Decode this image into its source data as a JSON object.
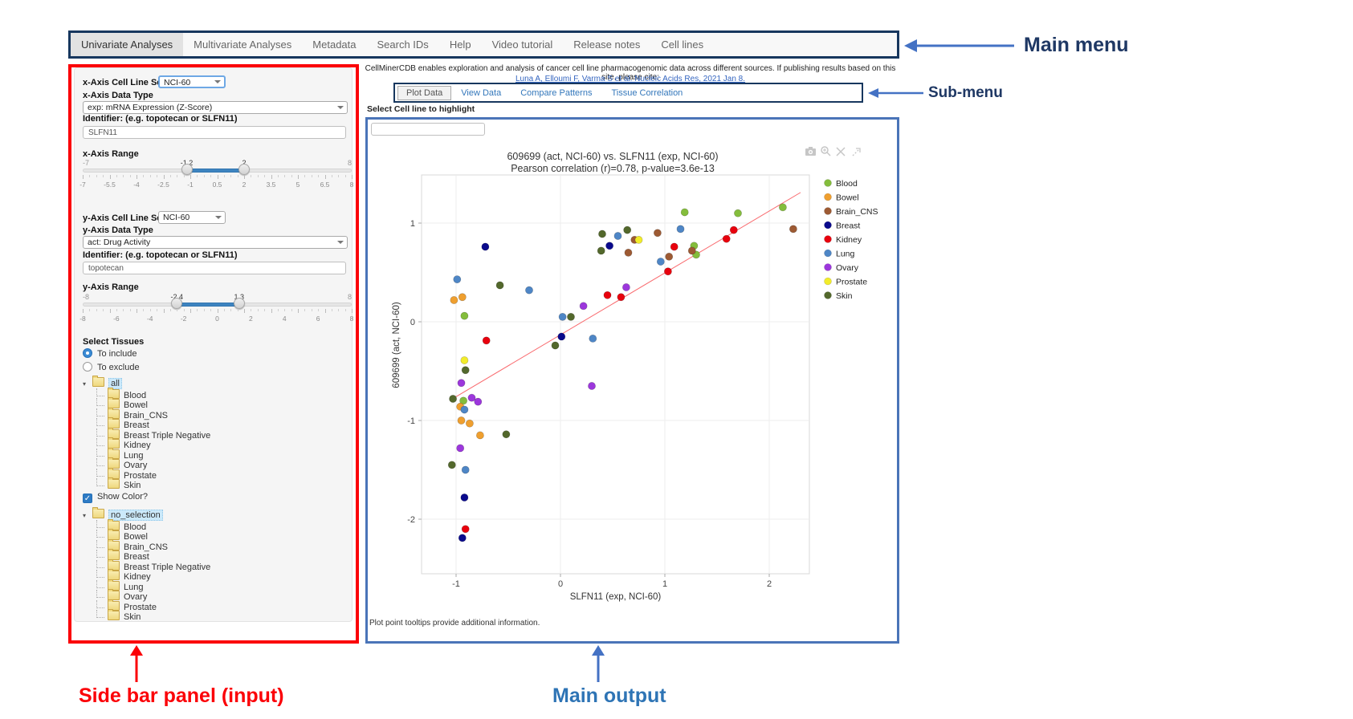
{
  "annotations": {
    "main_menu": "Main menu",
    "submenu": "Sub-menu",
    "sidebar": "Side bar panel (input)",
    "main_output": "Main output"
  },
  "main_menu": {
    "items": [
      "Univariate Analyses",
      "Multivariate Analyses",
      "Metadata",
      "Search IDs",
      "Help",
      "Video tutorial",
      "Release notes",
      "Cell lines"
    ],
    "active": "Univariate Analyses"
  },
  "citation": {
    "text": "CellMinerCDB enables exploration and analysis of cancer cell line pharmacogenomic data across different sources. If publishing results based on this site, please cite:",
    "link": "Luna A, Elloumi F, Varma S et al. Nucleic Acids Res, 2021 Jan 8."
  },
  "submenu": {
    "tabs": [
      "Plot Data",
      "View Data",
      "Compare Patterns",
      "Tissue Correlation"
    ],
    "active": "Plot Data"
  },
  "sidebar": {
    "x_axis": {
      "cell_line_set_label": "x-Axis Cell Line Set",
      "cell_line_set_value": "NCI-60",
      "data_type_label": "x-Axis Data Type",
      "data_type_value": "exp: mRNA Expression (Z-Score)",
      "identifier_label": "Identifier: (e.g. topotecan or SLFN11)",
      "identifier_value": "SLFN11",
      "range_label": "x-Axis Range",
      "range": {
        "min": -7,
        "max": 8,
        "from": -1.2,
        "to": 2,
        "min_label": "-7",
        "max_label": "8",
        "from_label": "-1.2",
        "to_label": "2",
        "ticks": [
          "-7",
          "-5.5",
          "-4",
          "-2.5",
          "-1",
          "0.5",
          "2",
          "3.5",
          "5",
          "6.5",
          "8"
        ]
      }
    },
    "y_axis": {
      "cell_line_set_label": "y-Axis Cell Line Set",
      "cell_line_set_value": "NCI-60",
      "data_type_label": "y-Axis Data Type",
      "data_type_value": "act: Drug Activity",
      "identifier_label": "Identifier: (e.g. topotecan or SLFN11)",
      "identifier_value": "topotecan",
      "range_label": "y-Axis Range",
      "range": {
        "min": -8,
        "max": 8,
        "from": -2.4,
        "to": 1.3,
        "min_label": "-8",
        "max_label": "8",
        "from_label": "-2.4",
        "to_label": "1.3",
        "ticks": [
          "-8",
          "-6",
          "-4",
          "-2",
          "0",
          "2",
          "4",
          "6",
          "8"
        ]
      }
    },
    "select_tissues": {
      "label": "Select Tissues",
      "options": [
        "To include",
        "To exclude"
      ],
      "selected": "To include"
    },
    "include_tree": {
      "root": "all",
      "selected_root": true,
      "children": [
        "Blood",
        "Bowel",
        "Brain_CNS",
        "Breast",
        "Breast Triple Negative",
        "Kidney",
        "Lung",
        "Ovary",
        "Prostate",
        "Skin"
      ]
    },
    "show_color_label": "Show Color?",
    "show_color_checked": true,
    "color_tree": {
      "root": "no_selection",
      "selected_root": true,
      "children": [
        "Blood",
        "Bowel",
        "Brain_CNS",
        "Breast",
        "Breast Triple Negative",
        "Kidney",
        "Lung",
        "Ovary",
        "Prostate",
        "Skin"
      ]
    }
  },
  "main": {
    "highlight_label": "Select Cell line to highlight",
    "highlight_value": "",
    "footer_note": "Plot point tooltips provide additional information.",
    "modebar_icons": [
      "camera-icon",
      "zoom-in-icon",
      "close-icon",
      "drag-icon"
    ]
  },
  "chart_data": {
    "type": "scatter",
    "title_line1": "609699 (act, NCI-60) vs. SLFN11 (exp, NCI-60)",
    "title_line2": "Pearson correlation (r)=0.78, p-value=3.6e-13",
    "xlabel": "SLFN11 (exp, NCI-60)",
    "ylabel": "609699 (act, NCI-60)",
    "xlim": [
      -1.35,
      2.4
    ],
    "ylim": [
      -2.55,
      1.5
    ],
    "x_ticks": [
      -1,
      0,
      1,
      2
    ],
    "y_ticks": [
      -2,
      -1,
      0,
      1
    ],
    "grid": true,
    "legend_position": "right",
    "regression_line": {
      "color": "#F96A6E",
      "x1": -1.05,
      "y1": -0.79,
      "x2": 2.3,
      "y2": 1.31
    },
    "series": [
      {
        "name": "Blood",
        "color": "#84BD3C",
        "points": [
          [
            -0.92,
            0.06
          ],
          [
            -0.93,
            -0.8
          ],
          [
            1.19,
            1.11
          ],
          [
            1.28,
            0.77
          ],
          [
            1.3,
            0.68
          ],
          [
            1.7,
            1.1
          ],
          [
            2.13,
            1.16
          ]
        ]
      },
      {
        "name": "Bowel",
        "color": "#EF9F2F",
        "points": [
          [
            -1.02,
            0.22
          ],
          [
            -0.94,
            0.25
          ],
          [
            -0.96,
            -0.86
          ],
          [
            -0.95,
            -1.0
          ],
          [
            -0.87,
            -1.03
          ],
          [
            -0.77,
            -1.15
          ]
        ]
      },
      {
        "name": "Brain_CNS",
        "color": "#9D5A33",
        "points": [
          [
            0.71,
            0.83
          ],
          [
            0.65,
            0.7
          ],
          [
            0.93,
            0.9
          ],
          [
            1.04,
            0.66
          ],
          [
            1.26,
            0.72
          ],
          [
            2.23,
            0.94
          ]
        ]
      },
      {
        "name": "Breast",
        "color": "#0A0A8C",
        "points": [
          [
            -0.72,
            0.76
          ],
          [
            0.47,
            0.77
          ],
          [
            0.01,
            -0.15
          ],
          [
            -0.92,
            -1.78
          ],
          [
            -0.94,
            -2.19
          ]
        ]
      },
      {
        "name": "Kidney",
        "color": "#E8000D",
        "points": [
          [
            -0.71,
            -0.19
          ],
          [
            0.45,
            0.27
          ],
          [
            0.58,
            0.25
          ],
          [
            1.03,
            0.51
          ],
          [
            1.09,
            0.76
          ],
          [
            1.59,
            0.84
          ],
          [
            1.66,
            0.93
          ],
          [
            -0.91,
            -2.1
          ]
        ]
      },
      {
        "name": "Lung",
        "color": "#4E86C6",
        "points": [
          [
            -0.99,
            0.43
          ],
          [
            -0.3,
            0.32
          ],
          [
            0.02,
            0.05
          ],
          [
            0.55,
            0.87
          ],
          [
            0.96,
            0.61
          ],
          [
            1.15,
            0.94
          ],
          [
            0.31,
            -0.17
          ],
          [
            -0.92,
            -0.89
          ],
          [
            -0.91,
            -1.5
          ]
        ]
      },
      {
        "name": "Ovary",
        "color": "#9C37DC",
        "points": [
          [
            0.63,
            0.35
          ],
          [
            0.22,
            0.16
          ],
          [
            -0.95,
            -0.62
          ],
          [
            0.3,
            -0.65
          ],
          [
            -0.85,
            -0.77
          ],
          [
            -0.79,
            -0.81
          ],
          [
            -0.96,
            -1.28
          ]
        ]
      },
      {
        "name": "Prostate",
        "color": "#F2EC2A",
        "points": [
          [
            0.75,
            0.83
          ],
          [
            -0.92,
            -0.39
          ]
        ]
      },
      {
        "name": "Skin",
        "color": "#53682C",
        "points": [
          [
            -0.58,
            0.37
          ],
          [
            0.4,
            0.89
          ],
          [
            0.64,
            0.93
          ],
          [
            0.39,
            0.72
          ],
          [
            0.1,
            0.05
          ],
          [
            -0.05,
            -0.24
          ],
          [
            -0.91,
            -0.49
          ],
          [
            -1.03,
            -0.78
          ],
          [
            -0.52,
            -1.14
          ],
          [
            -1.04,
            -1.45
          ]
        ]
      }
    ]
  }
}
